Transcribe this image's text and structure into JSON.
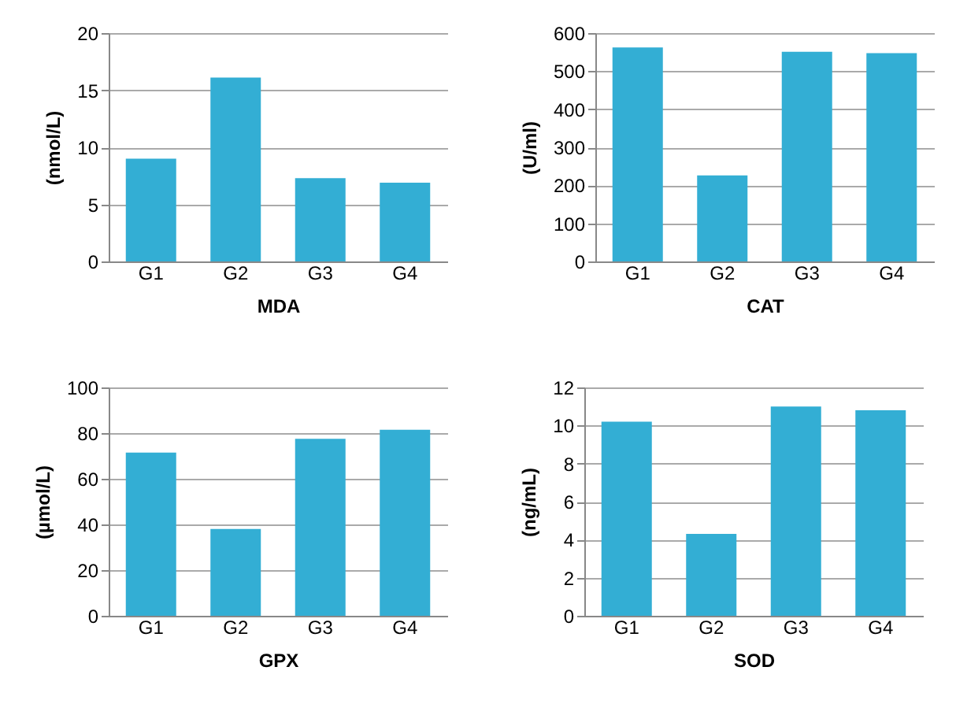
{
  "chart_data": [
    {
      "type": "bar",
      "categories": [
        "G1",
        "G2",
        "G3",
        "G4"
      ],
      "values": [
        9,
        16.1,
        7.3,
        6.9
      ],
      "color": "#33aed4",
      "xlabel": "MDA",
      "ylabel": "(nmol/L)",
      "ylim": [
        0,
        20
      ],
      "yticks": [
        0,
        5,
        10,
        15,
        20
      ],
      "grid": "y"
    },
    {
      "type": "bar",
      "categories": [
        "G1",
        "G2",
        "G3",
        "G4"
      ],
      "values": [
        562,
        226,
        551,
        547
      ],
      "color": "#33aed4",
      "xlabel": "CAT",
      "ylabel": "(U/ml)",
      "ylim": [
        0,
        600
      ],
      "yticks": [
        0,
        100,
        200,
        300,
        400,
        500,
        600
      ],
      "grid": "y"
    },
    {
      "type": "bar",
      "categories": [
        "G1",
        "G2",
        "G3",
        "G4"
      ],
      "values": [
        71.5,
        38,
        77.5,
        81.5
      ],
      "color": "#33aed4",
      "xlabel": "GPX",
      "ylabel": "(µmol/L)",
      "ylim": [
        0,
        100
      ],
      "yticks": [
        0,
        20,
        40,
        60,
        80,
        100
      ],
      "grid": "y"
    },
    {
      "type": "bar",
      "categories": [
        "G1",
        "G2",
        "G3",
        "G4"
      ],
      "values": [
        10.2,
        4.3,
        11,
        10.8
      ],
      "color": "#33aed4",
      "xlabel": "SOD",
      "ylabel": "(ng/mL)",
      "ylim": [
        0,
        12
      ],
      "yticks": [
        0,
        2,
        4,
        6,
        8,
        10,
        12
      ],
      "grid": "y"
    }
  ]
}
